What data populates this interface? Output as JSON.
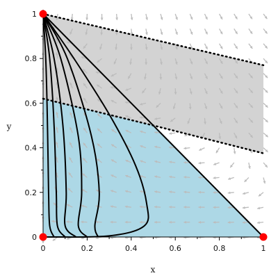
{
  "chart_data": {
    "type": "phase_portrait",
    "xlabel": "x",
    "ylabel": "y",
    "xlim": [
      0,
      1
    ],
    "ylim": [
      0,
      1
    ],
    "xticks": [
      {
        "value": 0,
        "label": "0"
      },
      {
        "value": 0.2,
        "label": "0.2"
      },
      {
        "value": 0.4,
        "label": "0.4"
      },
      {
        "value": 0.6,
        "label": "0.6"
      },
      {
        "value": 0.8,
        "label": "0.8"
      },
      {
        "value": 1,
        "label": "1"
      }
    ],
    "yticks": [
      {
        "value": 0,
        "label": "0"
      },
      {
        "value": 0.2,
        "label": "0.2"
      },
      {
        "value": 0.4,
        "label": "0.4"
      },
      {
        "value": 0.6,
        "label": "0.6"
      },
      {
        "value": 0.8,
        "label": "0.8"
      },
      {
        "value": 1,
        "label": "1"
      }
    ],
    "colors": {
      "gray_region": "#d3d3d3",
      "blue_region": "#add8e6",
      "arrows": "#bcbcbc",
      "trajectories": "#000000",
      "equilibria": "#ff0000"
    },
    "regions": [
      {
        "id": "gray",
        "points": [
          [
            0,
            1
          ],
          [
            1,
            0.77
          ],
          [
            1,
            0.375
          ],
          [
            0.5,
            0.5
          ],
          [
            0,
            0.62
          ]
        ]
      },
      {
        "id": "blue",
        "points": [
          [
            0,
            0
          ],
          [
            0,
            0.62
          ],
          [
            0.5,
            0.5
          ],
          [
            1,
            0
          ]
        ]
      }
    ],
    "separatrix_lines": [
      [
        [
          0,
          1
        ],
        [
          1,
          0.77
        ]
      ],
      [
        [
          0,
          0.62
        ],
        [
          0.5,
          0.5
        ],
        [
          1,
          0.375
        ]
      ]
    ],
    "boundary_line": [
      [
        0,
        1
      ],
      [
        1,
        0
      ]
    ],
    "trajectories": [
      [
        [
          0.05,
          0
        ],
        [
          0.03,
          0.05
        ],
        [
          0.025,
          0.2
        ],
        [
          0.02,
          0.5
        ],
        [
          0.012,
          0.8
        ],
        [
          0,
          1
        ]
      ],
      [
        [
          0.1,
          0
        ],
        [
          0.065,
          0.05
        ],
        [
          0.06,
          0.2
        ],
        [
          0.05,
          0.5
        ],
        [
          0.03,
          0.8
        ],
        [
          0,
          1
        ]
      ],
      [
        [
          0.15,
          0
        ],
        [
          0.1,
          0.05
        ],
        [
          0.105,
          0.2
        ],
        [
          0.09,
          0.5
        ],
        [
          0.05,
          0.8
        ],
        [
          0,
          1
        ]
      ],
      [
        [
          0.2,
          0
        ],
        [
          0.16,
          0.05
        ],
        [
          0.175,
          0.2
        ],
        [
          0.16,
          0.45
        ],
        [
          0.08,
          0.8
        ],
        [
          0,
          1
        ]
      ],
      [
        [
          0.25,
          0
        ],
        [
          0.235,
          0.05
        ],
        [
          0.255,
          0.2
        ],
        [
          0.22,
          0.45
        ],
        [
          0.11,
          0.8
        ],
        [
          0,
          1
        ]
      ],
      [
        [
          0.01,
          0
        ],
        [
          0.3,
          0.005
        ],
        [
          0.46,
          0.05
        ],
        [
          0.47,
          0.15
        ],
        [
          0.42,
          0.32
        ],
        [
          0.3,
          0.55
        ],
        [
          0.14,
          0.8
        ],
        [
          0,
          1
        ]
      ]
    ],
    "equilibria": [
      [
        0,
        1
      ],
      [
        0,
        0
      ],
      [
        1,
        0
      ]
    ],
    "dotted_guides": [
      [
        [
          0,
          1
        ],
        [
          1,
          0.77
        ]
      ],
      [
        [
          0,
          0.62
        ],
        [
          1,
          0.375
        ]
      ]
    ]
  }
}
